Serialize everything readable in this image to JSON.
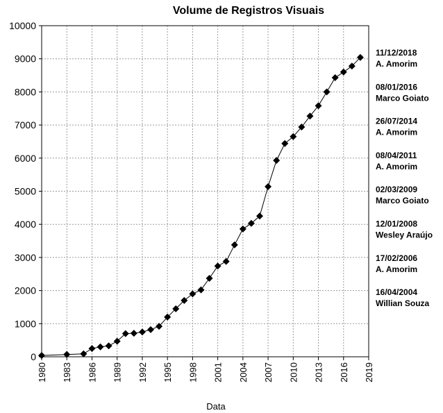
{
  "chart_data": {
    "type": "line",
    "title": "Volume de Registros Visuais",
    "xlabel": "Data",
    "ylabel": "",
    "xlim": [
      1980,
      2019
    ],
    "ylim": [
      0,
      10000
    ],
    "grid": true,
    "x_ticks": [
      "1980",
      "1983",
      "1986",
      "1989",
      "1992",
      "1995",
      "1998",
      "2001",
      "2004",
      "2007",
      "2010",
      "2013",
      "2016",
      "2019"
    ],
    "y_ticks": [
      "0",
      "1000",
      "2000",
      "3000",
      "4000",
      "5000",
      "6000",
      "7000",
      "8000",
      "9000",
      "10000"
    ],
    "series": [
      {
        "marker": "diamond",
        "color": "#000000",
        "x": [
          1980,
          1983,
          1985,
          1986,
          1987,
          1988,
          1989,
          1990,
          1991,
          1992,
          1993,
          1994,
          1995,
          1996,
          1997,
          1998,
          1999,
          2000,
          2001,
          2002,
          2003,
          2004,
          2005,
          2006,
          2007,
          2008,
          2009,
          2010,
          2011,
          2012,
          2013,
          2014,
          2015,
          2016,
          2017,
          2018
        ],
        "y": [
          40,
          70,
          90,
          250,
          300,
          330,
          470,
          700,
          710,
          750,
          820,
          920,
          1200,
          1450,
          1700,
          1900,
          2020,
          2370,
          2740,
          2880,
          3380,
          3860,
          4030,
          4250,
          5140,
          5930,
          6440,
          6650,
          6940,
          7270,
          7580,
          8000,
          8430,
          8600,
          8780,
          9040
        ]
      }
    ],
    "annotations": [
      {
        "date": "11/12/2018",
        "name": "A. Amorim"
      },
      {
        "date": "08/01/2016",
        "name": "Marco Goiato"
      },
      {
        "date": "26/07/2014",
        "name": "A. Amorim"
      },
      {
        "date": "08/04/2011",
        "name": "A. Amorim"
      },
      {
        "date": "02/03/2009",
        "name": "Marco Goiato"
      },
      {
        "date": "12/01/2008",
        "name": "Wesley Araújo"
      },
      {
        "date": "17/02/2006",
        "name": "A. Amorim"
      },
      {
        "date": "16/04/2004",
        "name": "Willian Souza"
      }
    ]
  }
}
